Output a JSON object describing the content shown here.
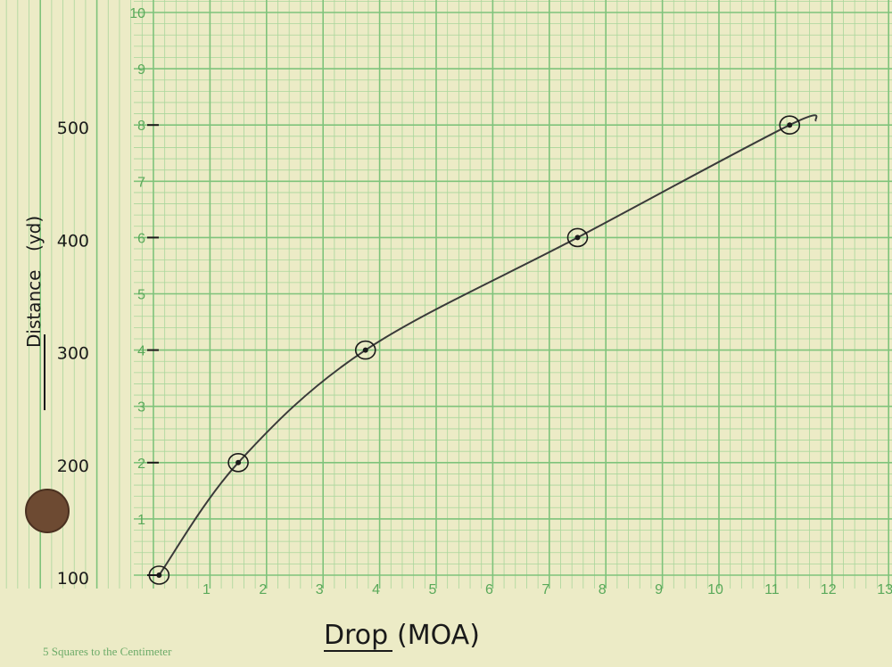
{
  "chart_data": {
    "type": "scatter",
    "title": "",
    "xlabel": "Drop",
    "xlabel_unit": "(MOA)",
    "ylabel": "Distance",
    "ylabel_unit": "(yd)",
    "xlim": [
      0,
      13
    ],
    "x_grid_labels": [
      "1",
      "2",
      "3",
      "4",
      "5",
      "6",
      "7",
      "8",
      "9",
      "10",
      "11",
      "12",
      "13"
    ],
    "y_grid_labels": [
      "1",
      "2",
      "3",
      "4",
      "5",
      "6",
      "7",
      "8",
      "9",
      "10"
    ],
    "y_ticks": [
      {
        "value": 100,
        "label": "100"
      },
      {
        "value": 200,
        "label": "200"
      },
      {
        "value": 300,
        "label": "300"
      },
      {
        "value": 400,
        "label": "400"
      },
      {
        "value": 500,
        "label": "500"
      }
    ],
    "points": [
      {
        "x": 0.1,
        "y": 100
      },
      {
        "x": 1.5,
        "y": 200
      },
      {
        "x": 3.75,
        "y": 300
      },
      {
        "x": 7.5,
        "y": 400
      },
      {
        "x": 11.25,
        "y": 500
      }
    ],
    "trend_curve": true,
    "grid": true
  },
  "footer": "5 Squares to the Centimeter",
  "colors": {
    "paper": "#ecebc6",
    "grid_major": "#7fc37b",
    "grid_minor": "#a9d69b",
    "ink": "#1a1a1a",
    "punch_hole": "#6d4a32"
  }
}
